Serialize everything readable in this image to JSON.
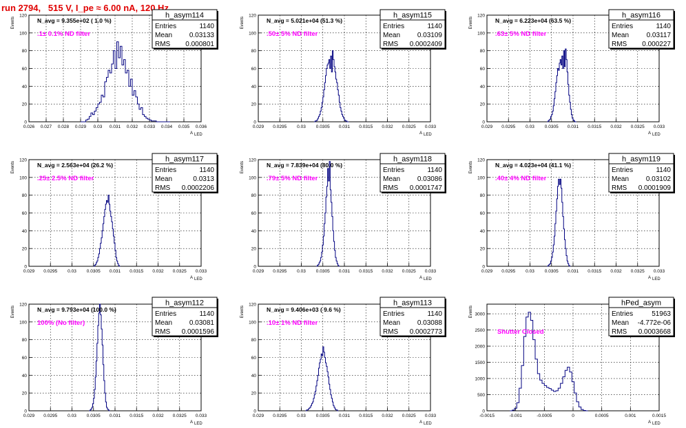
{
  "title": "run 2794,   515 V, I_pe ≈ 6.00 nA, 120 Hz",
  "x_axis_label": "A",
  "x_axis_subscript": "LED",
  "y_axis_label": "Events",
  "stats_labels": {
    "entries": "Entries",
    "mean": "Mean",
    "rms": "RMS"
  },
  "colors": {
    "histogram": "#000080",
    "annotation": "#ff00ff",
    "title": "#e00000",
    "grid": "#000000"
  },
  "chart_data": [
    {
      "type": "histogram",
      "name": "h_asym114",
      "navg_text": "N_avg = 9.355e+02 ( 1.0 %)",
      "filter_text": ".1± 0.1% ND filter",
      "stats": {
        "entries": "1140",
        "mean": "0.03133",
        "rms": "0.000801"
      },
      "xlim": [
        0.026,
        0.036
      ],
      "xticks": [
        "0.026",
        "0.027",
        "0.028",
        "0.029",
        "0.03",
        "0.031",
        "0.032",
        "0.033",
        "0.034",
        "0.035",
        "0.036"
      ],
      "ylim": [
        0,
        120
      ],
      "yticks": [
        0,
        20,
        40,
        60,
        80,
        100,
        120
      ],
      "grid": true,
      "bins": {
        "start": 0.029,
        "width": 0.0001,
        "counts": [
          0,
          0,
          0,
          2,
          3,
          6,
          10,
          8,
          12,
          16,
          20,
          22,
          30,
          28,
          45,
          50,
          58,
          55,
          65,
          80,
          60,
          90,
          72,
          85,
          64,
          70,
          55,
          58,
          40,
          48,
          30,
          35,
          28,
          20,
          14,
          16,
          8,
          6,
          4,
          3,
          2,
          1,
          1,
          1,
          0,
          0,
          0,
          0,
          0,
          0,
          0,
          0
        ]
      }
    },
    {
      "type": "histogram",
      "name": "h_asym115",
      "navg_text": "N_avg = 5.021e+04 (51.3 %)",
      "filter_text": ".50± 5% ND filter",
      "stats": {
        "entries": "1140",
        "mean": "0.03109",
        "rms": "0.0002409"
      },
      "xlim": [
        0.029,
        0.033
      ],
      "xticks": [
        "0.029",
        "0.0295",
        "0.03",
        "0.0305",
        "0.031",
        "0.0315",
        "0.032",
        "0.0325",
        "0.033"
      ],
      "ylim": [
        0,
        120
      ],
      "yticks": [
        0,
        20,
        40,
        60,
        80,
        100,
        120
      ],
      "grid": true,
      "bins": {
        "start": 0.0303,
        "width": 2e-05,
        "counts": [
          0,
          1,
          1,
          2,
          4,
          6,
          8,
          12,
          16,
          22,
          28,
          36,
          44,
          52,
          60,
          64,
          66,
          70,
          60,
          74,
          56,
          80,
          70,
          62,
          56,
          48,
          44,
          36,
          30,
          22,
          16,
          12,
          8,
          6,
          4,
          2,
          1,
          1,
          0,
          0
        ]
      }
    },
    {
      "type": "histogram",
      "name": "h_asym116",
      "navg_text": "N_avg = 6.223e+04 (63.5 %)",
      "filter_text": ".63± 5% ND filter",
      "stats": {
        "entries": "1140",
        "mean": "0.03117",
        "rms": "0.000227"
      },
      "xlim": [
        0.029,
        0.033
      ],
      "xticks": [
        "0.029",
        "0.0295",
        "0.03",
        "0.0305",
        "0.031",
        "0.0315",
        "0.032",
        "0.0325",
        "0.033"
      ],
      "ylim": [
        0,
        120
      ],
      "yticks": [
        0,
        20,
        40,
        60,
        80,
        100,
        120
      ],
      "grid": true,
      "bins": {
        "start": 0.0304,
        "width": 2e-05,
        "counts": [
          0,
          1,
          2,
          3,
          6,
          8,
          12,
          18,
          26,
          34,
          44,
          52,
          60,
          58,
          66,
          70,
          64,
          74,
          60,
          80,
          62,
          82,
          70,
          56,
          42,
          30,
          22,
          14,
          8,
          4,
          2,
          1,
          0,
          0
        ]
      }
    },
    {
      "type": "histogram",
      "name": "h_asym117",
      "navg_text": "N_avg = 2.563e+04 (26.2 %)",
      "filter_text": ".25± 2.5% ND filter",
      "stats": {
        "entries": "1140",
        "mean": "0.0313",
        "rms": "0.0002206"
      },
      "xlim": [
        0.029,
        0.033
      ],
      "xticks": [
        "0.029",
        "0.0295",
        "0.03",
        "0.0305",
        "0.031",
        "0.0315",
        "0.032",
        "0.0325",
        "0.033"
      ],
      "ylim": [
        0,
        120
      ],
      "yticks": [
        0,
        20,
        40,
        60,
        80,
        100,
        120
      ],
      "grid": true,
      "bins": {
        "start": 0.0305,
        "width": 2e-05,
        "counts": [
          0,
          1,
          2,
          4,
          6,
          10,
          14,
          20,
          26,
          32,
          40,
          48,
          56,
          64,
          70,
          74,
          72,
          80,
          70,
          62,
          56,
          50,
          42,
          34,
          26,
          18,
          10,
          6,
          3,
          1,
          0
        ]
      }
    },
    {
      "type": "histogram",
      "name": "h_asym118",
      "navg_text": "N_avg = 7.839e+04 (80.0 %)",
      "filter_text": ".79± 5% ND filter",
      "stats": {
        "entries": "1140",
        "mean": "0.03086",
        "rms": "0.0001747"
      },
      "xlim": [
        0.029,
        0.033
      ],
      "xticks": [
        "0.029",
        "0.0295",
        "0.03",
        "0.0305",
        "0.031",
        "0.0315",
        "0.032",
        "0.0325",
        "0.033"
      ],
      "ylim": [
        0,
        120
      ],
      "yticks": [
        0,
        20,
        40,
        60,
        80,
        100,
        120
      ],
      "grid": true,
      "bins": {
        "start": 0.03035,
        "width": 2e-05,
        "counts": [
          0,
          1,
          2,
          4,
          6,
          10,
          16,
          24,
          34,
          48,
          60,
          78,
          90,
          110,
          96,
          118,
          86,
          72,
          56,
          40,
          28,
          18,
          10,
          6,
          3,
          1,
          0
        ]
      }
    },
    {
      "type": "histogram",
      "name": "h_asym119",
      "navg_text": "N_avg = 4.023e+04 (41.1 %)",
      "filter_text": ".40± 4% ND filter",
      "stats": {
        "entries": "1140",
        "mean": "0.03102",
        "rms": "0.0001909"
      },
      "xlim": [
        0.029,
        0.033
      ],
      "xticks": [
        "0.029",
        "0.0295",
        "0.03",
        "0.0305",
        "0.031",
        "0.0315",
        "0.032",
        "0.0325",
        "0.033"
      ],
      "ylim": [
        0,
        120
      ],
      "yticks": [
        0,
        20,
        40,
        60,
        80,
        100,
        120
      ],
      "grid": true,
      "bins": {
        "start": 0.0304,
        "width": 2e-05,
        "counts": [
          0,
          1,
          2,
          3,
          6,
          10,
          16,
          24,
          34,
          48,
          62,
          76,
          90,
          98,
          92,
          98,
          88,
          72,
          56,
          42,
          30,
          20,
          12,
          6,
          3,
          1,
          0
        ]
      }
    },
    {
      "type": "histogram",
      "name": "h_asym112",
      "navg_text": "N_avg = 9.793e+04 (100.0 %)",
      "filter_text": "100% (No filter)",
      "stats": {
        "entries": "1140",
        "mean": "0.03081",
        "rms": "0.0001596"
      },
      "xlim": [
        0.029,
        0.033
      ],
      "xticks": [
        "0.029",
        "0.0295",
        "0.03",
        "0.0305",
        "0.031",
        "0.0315",
        "0.032",
        "0.0325",
        "0.033"
      ],
      "ylim": [
        0,
        120
      ],
      "yticks": [
        0,
        20,
        40,
        60,
        80,
        100,
        120
      ],
      "grid": true,
      "bins": {
        "start": 0.0304,
        "width": 2e-05,
        "counts": [
          0,
          1,
          2,
          4,
          8,
          14,
          24,
          38,
          56,
          76,
          96,
          110,
          120,
          108,
          92,
          74,
          52,
          34,
          20,
          10,
          4,
          2,
          1,
          0
        ]
      }
    },
    {
      "type": "histogram",
      "name": "h_asym113",
      "navg_text": "N_avg = 9.406e+03 ( 9.6 %)",
      "filter_text": ".10± 1% ND filter",
      "stats": {
        "entries": "1140",
        "mean": "0.03088",
        "rms": "0.0002773"
      },
      "xlim": [
        0.029,
        0.033
      ],
      "xticks": [
        "0.029",
        "0.0295",
        "0.03",
        "0.0305",
        "0.031",
        "0.0315",
        "0.032",
        "0.0325",
        "0.033"
      ],
      "ylim": [
        0,
        120
      ],
      "yticks": [
        0,
        20,
        40,
        60,
        80,
        100,
        120
      ],
      "grid": true,
      "bins": {
        "start": 0.0301,
        "width": 2e-05,
        "counts": [
          0,
          1,
          1,
          2,
          3,
          4,
          6,
          8,
          10,
          14,
          18,
          22,
          28,
          34,
          40,
          48,
          54,
          58,
          64,
          62,
          72,
          66,
          60,
          54,
          50,
          44,
          38,
          30,
          24,
          18,
          14,
          10,
          6,
          4,
          2,
          1,
          1,
          0
        ]
      }
    },
    {
      "type": "histogram",
      "name": "hPed_asym",
      "navg_text": "",
      "filter_text": "Shutter Closed",
      "stats": {
        "entries": "51963",
        "mean": "-4.772e-06",
        "rms": "0.0003668"
      },
      "xlim": [
        -0.0015,
        0.0015
      ],
      "xticks": [
        "-0.0015",
        "-0.001",
        "-0.0005",
        "0",
        "0.0005",
        "0.001",
        "0.0015"
      ],
      "ylim": [
        0,
        3300
      ],
      "yticks": [
        0,
        500,
        1000,
        1500,
        2000,
        2500,
        3000
      ],
      "grid": true,
      "bins": {
        "start": -0.0011,
        "width": 4e-05,
        "counts": [
          0,
          20,
          80,
          250,
          700,
          1400,
          2300,
          2900,
          3050,
          2800,
          2200,
          1600,
          1150,
          950,
          850,
          780,
          720,
          690,
          640,
          600,
          620,
          700,
          850,
          1050,
          1250,
          1350,
          1200,
          900,
          550,
          280,
          120,
          40,
          10,
          0
        ]
      }
    }
  ]
}
